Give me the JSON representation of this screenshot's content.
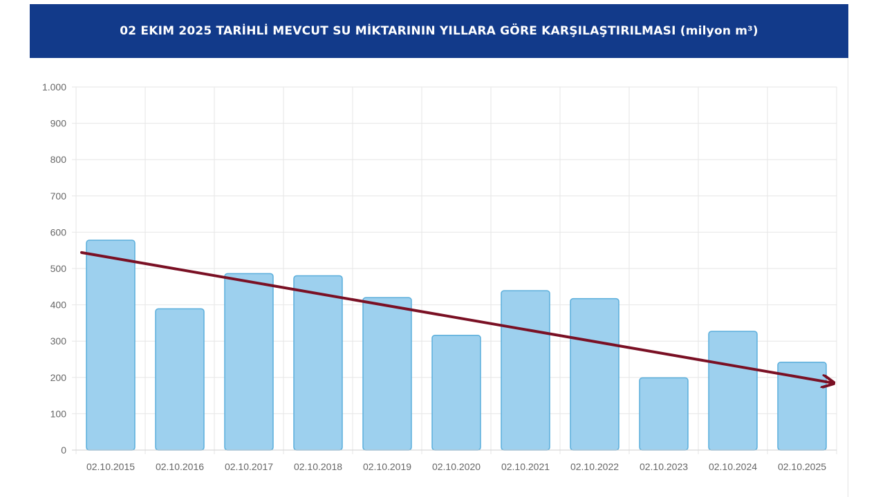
{
  "header": {
    "title": "02 EKIM 2025 TARİHLİ MEVCUT SU MİKTARININ YILLARA GÖRE KARŞILAŞTIRILMASI (milyon m³)"
  },
  "colors": {
    "banner": "#123a8a",
    "bar_fill": "#9dd0ee",
    "bar_stroke": "#5aaedb",
    "trend_arrow": "#7a1024",
    "grid": "#e6e6e6"
  },
  "chart_data": {
    "type": "bar",
    "title": "",
    "xlabel": "",
    "ylabel": "",
    "ylim": [
      0,
      1000
    ],
    "yticks": [
      0,
      100,
      200,
      300,
      400,
      500,
      600,
      700,
      800,
      900,
      1000
    ],
    "ytick_labels": [
      "0",
      "100",
      "200",
      "300",
      "400",
      "500",
      "600",
      "700",
      "800",
      "900",
      "1.000"
    ],
    "categories": [
      "02.10.2015",
      "02.10.2016",
      "02.10.2017",
      "02.10.2018",
      "02.10.2019",
      "02.10.2020",
      "02.10.2021",
      "02.10.2022",
      "02.10.2023",
      "02.10.2024",
      "02.10.2025"
    ],
    "values": [
      578,
      389,
      486,
      480,
      420,
      316,
      439,
      417,
      199,
      327,
      242
    ],
    "grid": true,
    "legend": "none",
    "trend_arrow": {
      "from": [
        "02.10.2015",
        544
      ],
      "to": [
        "02.10.2025",
        185
      ]
    }
  }
}
